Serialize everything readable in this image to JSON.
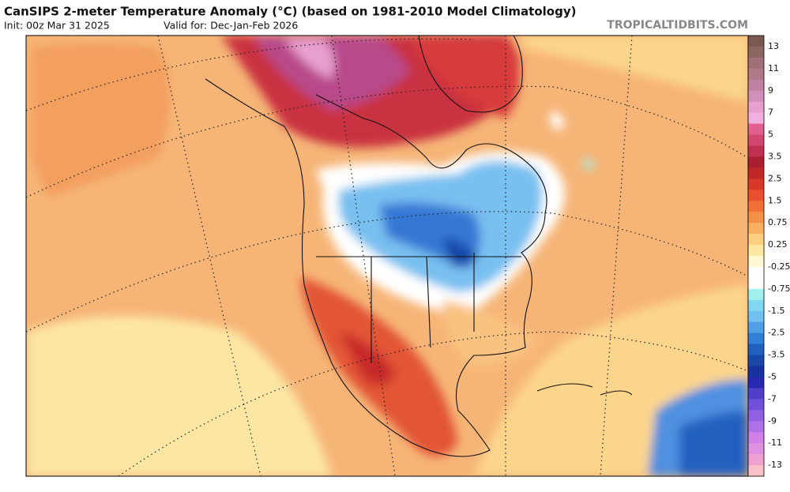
{
  "header": {
    "title": "CanSIPS 2-meter Temperature Anomaly (°C) (based on 1981-2010 Model Climatology)",
    "init": "Init: 00z Mar 31 2025",
    "valid": "Valid for: Dec-Jan-Feb 2026",
    "site": "TROPICALTIDBITS.COM"
  },
  "colorbar": {
    "labels": [
      "13",
      "11",
      "9",
      "7",
      "5",
      "3.5",
      "2.5",
      "1.5",
      "0.75",
      "0.25",
      "-0.25",
      "-0.75",
      "-1.5",
      "-2.5",
      "-3.5",
      "-5",
      "-7",
      "-9",
      "-11",
      "-13"
    ],
    "colors": [
      "#7a5a50",
      "#8c6660",
      "#a07078",
      "#b07888",
      "#c080a0",
      "#d090b8",
      "#e8a0d0",
      "#f0b0e0",
      "#e06090",
      "#d04870",
      "#c03050",
      "#a82030",
      "#c02828",
      "#d83828",
      "#e85030",
      "#f07038",
      "#f49048",
      "#f8b060",
      "#fcd080",
      "#fde8a0",
      "#fff8d0",
      "#ffffff",
      "#ffffff",
      "#a0f0f0",
      "#80d8f0",
      "#70c0f0",
      "#50a0e8",
      "#3080d8",
      "#2060c0",
      "#1848a8",
      "#1830a0",
      "#2828b0",
      "#5040c8",
      "#7050d8",
      "#9060e0",
      "#b070e8",
      "#d080e8",
      "#e090e0",
      "#f0a0d0",
      "#f8c0c8"
    ]
  }
}
